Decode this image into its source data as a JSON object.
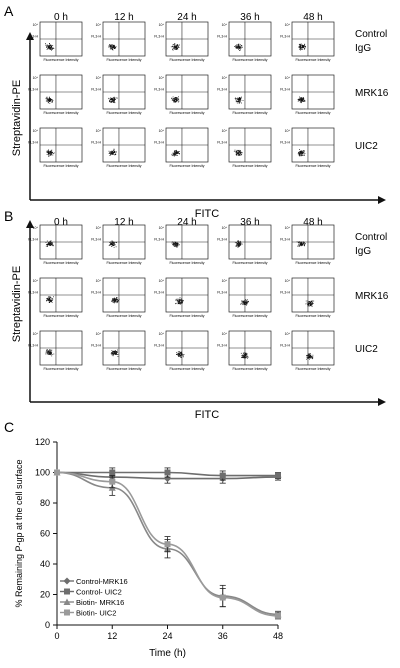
{
  "panels": {
    "A": {
      "letter": "A",
      "ylabel": "Streptavidin-PE",
      "xlabel": "FITC",
      "timepoints": [
        "0 h",
        "12 h",
        "24 h",
        "36 h",
        "48 h"
      ],
      "rows": [
        {
          "label_lines": [
            "Control",
            "IgG"
          ]
        },
        {
          "label_lines": [
            "MRK16"
          ]
        },
        {
          "label_lines": [
            "UIC2"
          ]
        }
      ],
      "plot_ylabel": "FL3-H",
      "plot_xlabel": "Fluorescence Intensity",
      "plot_ytick": "10⁴"
    },
    "B": {
      "letter": "B",
      "ylabel": "Streptavidin-PE",
      "xlabel": "FITC",
      "timepoints": [
        "0 h",
        "12 h",
        "24 h",
        "36 h",
        "48 h"
      ],
      "rows": [
        {
          "label_lines": [
            "Control",
            "IgG"
          ]
        },
        {
          "label_lines": [
            "MRK16"
          ]
        },
        {
          "label_lines": [
            "UIC2"
          ]
        }
      ],
      "plot_ylabel": "FL3-H",
      "plot_xlabel": "Fluorescence Intensity",
      "plot_ytick": "10⁴"
    },
    "C": {
      "letter": "C"
    }
  },
  "chart_data": {
    "type": "line",
    "ylabel": "% Remaining P-gp at the cell surface",
    "xlabel": "Time (h)",
    "x": [
      0,
      12,
      24,
      36,
      48
    ],
    "xlim": [
      0,
      48
    ],
    "ylim": [
      0,
      120
    ],
    "xticks": [
      0,
      12,
      24,
      36,
      48
    ],
    "yticks": [
      0,
      20,
      40,
      60,
      80,
      100,
      120
    ],
    "legend_position": "bottom-left",
    "series": [
      {
        "name": "Control-MRK16",
        "values": [
          100,
          97,
          96,
          96,
          97
        ],
        "errors": [
          0,
          3,
          3,
          3,
          2
        ],
        "marker": "diamond",
        "color": "#6e6e6e"
      },
      {
        "name": "Control- UIC2",
        "values": [
          100,
          100,
          100,
          98,
          98
        ],
        "errors": [
          0,
          3,
          3,
          3,
          2
        ],
        "marker": "square",
        "color": "#6e6e6e"
      },
      {
        "name": "Biotin- MRK16",
        "values": [
          100,
          90,
          50,
          19,
          7
        ],
        "errors": [
          0,
          5,
          6,
          7,
          2
        ],
        "marker": "triangle",
        "color": "#888888"
      },
      {
        "name": "Biotin- UIC2",
        "values": [
          100,
          94,
          53,
          18,
          6
        ],
        "errors": [
          0,
          4,
          5,
          6,
          2
        ],
        "marker": "square",
        "color": "#9a9a9a"
      }
    ]
  }
}
